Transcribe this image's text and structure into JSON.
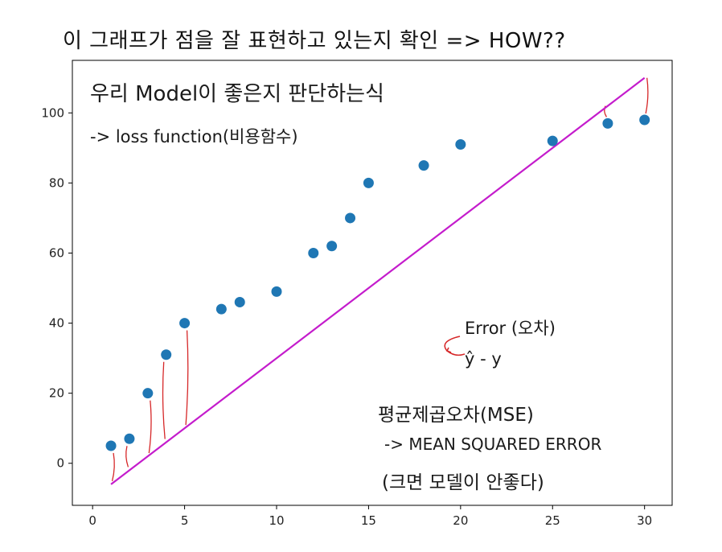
{
  "title": "이 그래프가 점을 잘 표현하고 있는지 확인 => HOW??",
  "annotations": {
    "model_judge": "우리 Model이 좋은지 판단하는식",
    "loss_function": "-> loss function(비용함수)",
    "error": "Error (오차)",
    "error_formula": "ŷ - y",
    "mse_korean": "평균제곱오차(MSE)",
    "mse_english": "-> MEAN SQUARED ERROR",
    "mse_note": "(크면 모델이 안좋다)"
  },
  "colors": {
    "points": "#1f77b4",
    "line": "#c41ccc",
    "residual_marks": "#d62728"
  },
  "chart_data": {
    "type": "scatter",
    "xlim": [
      -1.1,
      31.5
    ],
    "ylim": [
      -12,
      115
    ],
    "x_ticks": [
      0,
      5,
      10,
      15,
      20,
      25,
      30
    ],
    "y_ticks": [
      0,
      20,
      40,
      60,
      80,
      100
    ],
    "grid": false,
    "points": {
      "x": [
        1,
        2,
        3,
        4,
        5,
        7,
        8,
        10,
        12,
        13,
        14,
        15,
        18,
        20,
        25,
        28,
        30
      ],
      "y": [
        5,
        7,
        20,
        31,
        40,
        44,
        46,
        49,
        60,
        62,
        70,
        80,
        85,
        91,
        92,
        97,
        98
      ]
    },
    "line": {
      "x": [
        1,
        30
      ],
      "y": [
        -6,
        110
      ]
    }
  }
}
